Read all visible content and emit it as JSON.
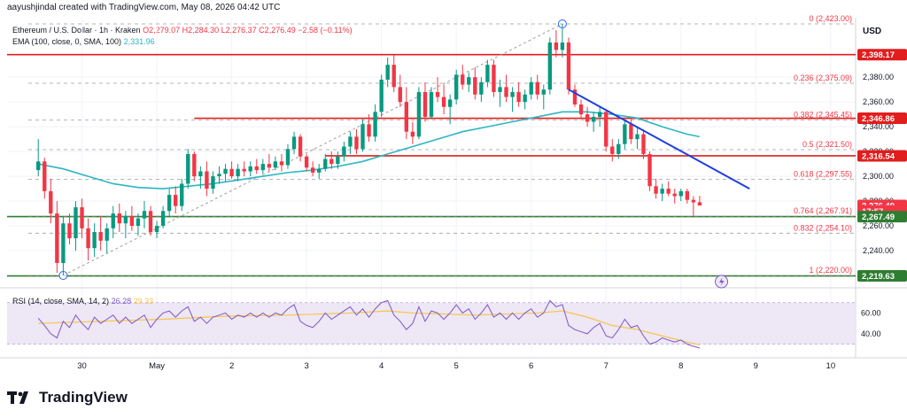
{
  "header": {
    "attribution": "aayushjindal created with TradingView.com, May 08, 2026 04:42 UTC",
    "symbol_line": "Ethereum / U.S. Dollar · 1h · Kraken",
    "ohlc": "O2,279.07 H2,284.30 L2,276.37 C2,276.49 −2.58 (−0.11%)",
    "ema_label": "EMA (100, close, 0, SMA, 100)",
    "ema_value": "2,331.96"
  },
  "currency": "USD",
  "brand": {
    "name": "TradingView"
  },
  "rsi_legend": {
    "label": "RSI (14, close, SMA, 14, 2)",
    "rsi_value": "26.28",
    "sma_value": "29.33"
  },
  "colors": {
    "up": "#089981",
    "down": "#f23645",
    "ema": "#2bb6c4",
    "resistance": "#e11d1d",
    "support": "#2e7d32",
    "trend": "#1e3ee0",
    "fib": "#9e9e9e",
    "rsi": "#7e57c2",
    "rsi_ma": "#f7c54a",
    "rsi_band": "#ede7f6"
  },
  "chart_data": {
    "type": "candlestick",
    "ylim": [
      2215,
      2428
    ],
    "xlim": [
      -5,
      131
    ],
    "x_ticks": [
      {
        "label": "30",
        "x": 7
      },
      {
        "label": "May",
        "x": 19
      },
      {
        "label": "2",
        "x": 31
      },
      {
        "label": "3",
        "x": 43
      },
      {
        "label": "4",
        "x": 55
      },
      {
        "label": "5",
        "x": 67
      },
      {
        "label": "6",
        "x": 79
      },
      {
        "label": "7",
        "x": 91
      },
      {
        "label": "8",
        "x": 103
      },
      {
        "label": "9",
        "x": 115
      },
      {
        "label": "10",
        "x": 127
      }
    ],
    "y_ticks": [
      2240,
      2260,
      2280,
      2300,
      2320,
      2340,
      2360,
      2380
    ],
    "y_tick_labels": [
      "2,240.00",
      "2,260.00",
      "2,280.00",
      "2,300.00",
      "2,320.00",
      "2,340.00",
      "2,360.00",
      "2,380.00"
    ],
    "price_tags": [
      {
        "label": "2,398.17",
        "value": 2398.17,
        "color": "#e11d1d"
      },
      {
        "label": "2,346.86",
        "value": 2346.86,
        "color": "#e11d1d"
      },
      {
        "label": "2,316.54",
        "value": 2316.54,
        "color": "#e11d1d"
      },
      {
        "label": "2,276.49",
        "value": 2276.49,
        "color": "#f23645"
      },
      {
        "label": "17:57",
        "value": 2272.0,
        "color": "#f23645"
      },
      {
        "label": "2,267.49",
        "value": 2267.49,
        "color": "#2e7d32"
      },
      {
        "label": "2,219.63",
        "value": 2219.63,
        "color": "#2e7d32"
      }
    ],
    "fib_levels": [
      {
        "ratio": "0",
        "price": "2,423.00",
        "value": 2423.0
      },
      {
        "ratio": "0.236",
        "price": "2,375.09",
        "value": 2375.09
      },
      {
        "ratio": "0.382",
        "price": "2,345.45",
        "value": 2345.45
      },
      {
        "ratio": "0.5",
        "price": "2,321.50",
        "value": 2321.5
      },
      {
        "ratio": "0.618",
        "price": "2,297.55",
        "value": 2297.55
      },
      {
        "ratio": "0.764",
        "price": "2,267.91",
        "value": 2267.91
      },
      {
        "ratio": "0.832",
        "price": "2,254.10",
        "value": 2254.1
      },
      {
        "ratio": "1",
        "price": "2,220.00",
        "value": 2220.0
      }
    ],
    "horizontal_lines": [
      {
        "value": 2398.17,
        "x_from": -5,
        "x_to": 131,
        "color": "#e11d1d"
      },
      {
        "value": 2346.86,
        "x_from": 25,
        "x_to": 131,
        "color": "#e11d1d"
      },
      {
        "value": 2316.54,
        "x_from": 46,
        "x_to": 131,
        "color": "#e11d1d"
      },
      {
        "value": 2267.49,
        "x_from": -5,
        "x_to": 131,
        "color": "#2e7d32"
      },
      {
        "value": 2219.63,
        "x_from": -5,
        "x_to": 131,
        "color": "#2e7d32"
      }
    ],
    "trend_line": {
      "x0": 85,
      "y0": 2370,
      "x1": 114,
      "y1": 2290
    },
    "fib_anchor_line": {
      "x0": 4,
      "y0": 2220,
      "x1": 84,
      "y1": 2423
    },
    "candles": [
      {
        "x": 0,
        "o": 2305,
        "h": 2330,
        "l": 2300,
        "c": 2312
      },
      {
        "x": 1,
        "o": 2312,
        "h": 2315,
        "l": 2282,
        "c": 2288
      },
      {
        "x": 2,
        "o": 2288,
        "h": 2298,
        "l": 2262,
        "c": 2270
      },
      {
        "x": 3,
        "o": 2270,
        "h": 2280,
        "l": 2222,
        "c": 2230
      },
      {
        "x": 4,
        "o": 2230,
        "h": 2268,
        "l": 2220,
        "c": 2262
      },
      {
        "x": 5,
        "o": 2262,
        "h": 2270,
        "l": 2245,
        "c": 2250
      },
      {
        "x": 6,
        "o": 2250,
        "h": 2280,
        "l": 2240,
        "c": 2275
      },
      {
        "x": 7,
        "o": 2275,
        "h": 2282,
        "l": 2250,
        "c": 2258
      },
      {
        "x": 8,
        "o": 2258,
        "h": 2266,
        "l": 2232,
        "c": 2242
      },
      {
        "x": 9,
        "o": 2242,
        "h": 2262,
        "l": 2235,
        "c": 2255
      },
      {
        "x": 10,
        "o": 2255,
        "h": 2268,
        "l": 2240,
        "c": 2248
      },
      {
        "x": 11,
        "o": 2248,
        "h": 2262,
        "l": 2238,
        "c": 2258
      },
      {
        "x": 12,
        "o": 2258,
        "h": 2276,
        "l": 2250,
        "c": 2270
      },
      {
        "x": 13,
        "o": 2270,
        "h": 2278,
        "l": 2255,
        "c": 2262
      },
      {
        "x": 14,
        "o": 2262,
        "h": 2272,
        "l": 2250,
        "c": 2268
      },
      {
        "x": 15,
        "o": 2268,
        "h": 2276,
        "l": 2256,
        "c": 2260
      },
      {
        "x": 16,
        "o": 2260,
        "h": 2270,
        "l": 2252,
        "c": 2266
      },
      {
        "x": 17,
        "o": 2266,
        "h": 2280,
        "l": 2258,
        "c": 2272
      },
      {
        "x": 18,
        "o": 2272,
        "h": 2276,
        "l": 2252,
        "c": 2255
      },
      {
        "x": 19,
        "o": 2255,
        "h": 2264,
        "l": 2250,
        "c": 2260
      },
      {
        "x": 20,
        "o": 2260,
        "h": 2276,
        "l": 2258,
        "c": 2272
      },
      {
        "x": 21,
        "o": 2272,
        "h": 2290,
        "l": 2268,
        "c": 2285
      },
      {
        "x": 22,
        "o": 2285,
        "h": 2292,
        "l": 2270,
        "c": 2276
      },
      {
        "x": 23,
        "o": 2276,
        "h": 2298,
        "l": 2272,
        "c": 2294
      },
      {
        "x": 24,
        "o": 2294,
        "h": 2322,
        "l": 2290,
        "c": 2318
      },
      {
        "x": 25,
        "o": 2318,
        "h": 2320,
        "l": 2296,
        "c": 2300
      },
      {
        "x": 26,
        "o": 2300,
        "h": 2308,
        "l": 2290,
        "c": 2304
      },
      {
        "x": 27,
        "o": 2304,
        "h": 2312,
        "l": 2284,
        "c": 2290
      },
      {
        "x": 28,
        "o": 2290,
        "h": 2304,
        "l": 2286,
        "c": 2300
      },
      {
        "x": 29,
        "o": 2300,
        "h": 2308,
        "l": 2294,
        "c": 2302
      },
      {
        "x": 30,
        "o": 2302,
        "h": 2310,
        "l": 2296,
        "c": 2306
      },
      {
        "x": 31,
        "o": 2306,
        "h": 2312,
        "l": 2298,
        "c": 2300
      },
      {
        "x": 32,
        "o": 2300,
        "h": 2310,
        "l": 2296,
        "c": 2306
      },
      {
        "x": 33,
        "o": 2306,
        "h": 2312,
        "l": 2300,
        "c": 2304
      },
      {
        "x": 34,
        "o": 2304,
        "h": 2312,
        "l": 2300,
        "c": 2308
      },
      {
        "x": 35,
        "o": 2308,
        "h": 2314,
        "l": 2302,
        "c": 2305
      },
      {
        "x": 36,
        "o": 2305,
        "h": 2314,
        "l": 2302,
        "c": 2310
      },
      {
        "x": 37,
        "o": 2310,
        "h": 2318,
        "l": 2304,
        "c": 2307
      },
      {
        "x": 38,
        "o": 2307,
        "h": 2316,
        "l": 2305,
        "c": 2312
      },
      {
        "x": 39,
        "o": 2312,
        "h": 2318,
        "l": 2304,
        "c": 2309
      },
      {
        "x": 40,
        "o": 2309,
        "h": 2326,
        "l": 2306,
        "c": 2322
      },
      {
        "x": 41,
        "o": 2322,
        "h": 2336,
        "l": 2318,
        "c": 2332
      },
      {
        "x": 42,
        "o": 2332,
        "h": 2334,
        "l": 2312,
        "c": 2316
      },
      {
        "x": 43,
        "o": 2316,
        "h": 2318,
        "l": 2304,
        "c": 2307
      },
      {
        "x": 44,
        "o": 2307,
        "h": 2312,
        "l": 2300,
        "c": 2303
      },
      {
        "x": 45,
        "o": 2303,
        "h": 2310,
        "l": 2298,
        "c": 2306
      },
      {
        "x": 46,
        "o": 2306,
        "h": 2318,
        "l": 2304,
        "c": 2314
      },
      {
        "x": 47,
        "o": 2314,
        "h": 2320,
        "l": 2306,
        "c": 2310
      },
      {
        "x": 48,
        "o": 2310,
        "h": 2320,
        "l": 2306,
        "c": 2316
      },
      {
        "x": 49,
        "o": 2316,
        "h": 2328,
        "l": 2312,
        "c": 2324
      },
      {
        "x": 50,
        "o": 2324,
        "h": 2336,
        "l": 2318,
        "c": 2332
      },
      {
        "x": 51,
        "o": 2332,
        "h": 2338,
        "l": 2318,
        "c": 2322
      },
      {
        "x": 52,
        "o": 2322,
        "h": 2346,
        "l": 2320,
        "c": 2342
      },
      {
        "x": 53,
        "o": 2342,
        "h": 2350,
        "l": 2328,
        "c": 2332
      },
      {
        "x": 54,
        "o": 2332,
        "h": 2358,
        "l": 2328,
        "c": 2352
      },
      {
        "x": 55,
        "o": 2352,
        "h": 2382,
        "l": 2348,
        "c": 2378
      },
      {
        "x": 56,
        "o": 2378,
        "h": 2396,
        "l": 2372,
        "c": 2390
      },
      {
        "x": 57,
        "o": 2390,
        "h": 2398,
        "l": 2368,
        "c": 2372
      },
      {
        "x": 58,
        "o": 2372,
        "h": 2382,
        "l": 2356,
        "c": 2360
      },
      {
        "x": 59,
        "o": 2360,
        "h": 2372,
        "l": 2330,
        "c": 2336
      },
      {
        "x": 60,
        "o": 2336,
        "h": 2344,
        "l": 2326,
        "c": 2332
      },
      {
        "x": 61,
        "o": 2332,
        "h": 2372,
        "l": 2330,
        "c": 2368
      },
      {
        "x": 62,
        "o": 2368,
        "h": 2376,
        "l": 2344,
        "c": 2348
      },
      {
        "x": 63,
        "o": 2348,
        "h": 2372,
        "l": 2346,
        "c": 2368
      },
      {
        "x": 64,
        "o": 2368,
        "h": 2380,
        "l": 2360,
        "c": 2364
      },
      {
        "x": 65,
        "o": 2364,
        "h": 2374,
        "l": 2350,
        "c": 2356
      },
      {
        "x": 66,
        "o": 2356,
        "h": 2366,
        "l": 2342,
        "c": 2362
      },
      {
        "x": 67,
        "o": 2362,
        "h": 2386,
        "l": 2358,
        "c": 2382
      },
      {
        "x": 68,
        "o": 2382,
        "h": 2390,
        "l": 2370,
        "c": 2374
      },
      {
        "x": 69,
        "o": 2374,
        "h": 2384,
        "l": 2368,
        "c": 2380
      },
      {
        "x": 70,
        "o": 2380,
        "h": 2388,
        "l": 2362,
        "c": 2366
      },
      {
        "x": 71,
        "o": 2366,
        "h": 2380,
        "l": 2360,
        "c": 2376
      },
      {
        "x": 72,
        "o": 2376,
        "h": 2394,
        "l": 2372,
        "c": 2390
      },
      {
        "x": 73,
        "o": 2390,
        "h": 2394,
        "l": 2364,
        "c": 2368
      },
      {
        "x": 74,
        "o": 2368,
        "h": 2378,
        "l": 2356,
        "c": 2372
      },
      {
        "x": 75,
        "o": 2372,
        "h": 2382,
        "l": 2360,
        "c": 2364
      },
      {
        "x": 76,
        "o": 2364,
        "h": 2372,
        "l": 2352,
        "c": 2368
      },
      {
        "x": 77,
        "o": 2368,
        "h": 2376,
        "l": 2356,
        "c": 2360
      },
      {
        "x": 78,
        "o": 2360,
        "h": 2370,
        "l": 2354,
        "c": 2366
      },
      {
        "x": 79,
        "o": 2366,
        "h": 2380,
        "l": 2362,
        "c": 2376
      },
      {
        "x": 80,
        "o": 2376,
        "h": 2382,
        "l": 2362,
        "c": 2366
      },
      {
        "x": 81,
        "o": 2366,
        "h": 2374,
        "l": 2354,
        "c": 2370
      },
      {
        "x": 82,
        "o": 2370,
        "h": 2412,
        "l": 2366,
        "c": 2408
      },
      {
        "x": 83,
        "o": 2408,
        "h": 2418,
        "l": 2396,
        "c": 2402
      },
      {
        "x": 84,
        "o": 2402,
        "h": 2423,
        "l": 2396,
        "c": 2408
      },
      {
        "x": 85,
        "o": 2408,
        "h": 2412,
        "l": 2366,
        "c": 2370
      },
      {
        "x": 86,
        "o": 2370,
        "h": 2374,
        "l": 2356,
        "c": 2358
      },
      {
        "x": 87,
        "o": 2358,
        "h": 2362,
        "l": 2346,
        "c": 2350
      },
      {
        "x": 88,
        "o": 2350,
        "h": 2356,
        "l": 2340,
        "c": 2344
      },
      {
        "x": 89,
        "o": 2344,
        "h": 2352,
        "l": 2336,
        "c": 2348
      },
      {
        "x": 90,
        "o": 2348,
        "h": 2356,
        "l": 2340,
        "c": 2352
      },
      {
        "x": 91,
        "o": 2352,
        "h": 2354,
        "l": 2320,
        "c": 2324
      },
      {
        "x": 92,
        "o": 2324,
        "h": 2330,
        "l": 2312,
        "c": 2318
      },
      {
        "x": 93,
        "o": 2318,
        "h": 2330,
        "l": 2314,
        "c": 2326
      },
      {
        "x": 94,
        "o": 2326,
        "h": 2346,
        "l": 2322,
        "c": 2342
      },
      {
        "x": 95,
        "o": 2342,
        "h": 2346,
        "l": 2326,
        "c": 2330
      },
      {
        "x": 96,
        "o": 2330,
        "h": 2340,
        "l": 2322,
        "c": 2334
      },
      {
        "x": 97,
        "o": 2334,
        "h": 2338,
        "l": 2314,
        "c": 2318
      },
      {
        "x": 98,
        "o": 2318,
        "h": 2320,
        "l": 2288,
        "c": 2292
      },
      {
        "x": 99,
        "o": 2292,
        "h": 2298,
        "l": 2282,
        "c": 2286
      },
      {
        "x": 100,
        "o": 2286,
        "h": 2294,
        "l": 2280,
        "c": 2290
      },
      {
        "x": 101,
        "o": 2290,
        "h": 2296,
        "l": 2284,
        "c": 2286
      },
      {
        "x": 102,
        "o": 2286,
        "h": 2290,
        "l": 2278,
        "c": 2284
      },
      {
        "x": 103,
        "o": 2284,
        "h": 2290,
        "l": 2280,
        "c": 2288
      },
      {
        "x": 104,
        "o": 2288,
        "h": 2290,
        "l": 2278,
        "c": 2281
      },
      {
        "x": 105,
        "o": 2281,
        "h": 2284,
        "l": 2268,
        "c": 2279
      },
      {
        "x": 106,
        "o": 2279.07,
        "h": 2284.3,
        "l": 2276.37,
        "c": 2276.49
      }
    ],
    "ema": [
      [
        0,
        2310
      ],
      [
        4,
        2306
      ],
      [
        8,
        2300
      ],
      [
        12,
        2294
      ],
      [
        16,
        2291
      ],
      [
        20,
        2290
      ],
      [
        24,
        2292
      ],
      [
        28,
        2294
      ],
      [
        32,
        2297
      ],
      [
        36,
        2300
      ],
      [
        40,
        2303
      ],
      [
        44,
        2305
      ],
      [
        48,
        2308
      ],
      [
        52,
        2312
      ],
      [
        56,
        2318
      ],
      [
        60,
        2324
      ],
      [
        64,
        2330
      ],
      [
        68,
        2336
      ],
      [
        72,
        2340
      ],
      [
        76,
        2344
      ],
      [
        80,
        2348
      ],
      [
        84,
        2352
      ],
      [
        88,
        2352
      ],
      [
        92,
        2350
      ],
      [
        96,
        2347
      ],
      [
        100,
        2340
      ],
      [
        104,
        2334
      ],
      [
        106,
        2331.96
      ]
    ],
    "rsi": {
      "ylim": [
        22,
        80
      ],
      "band": [
        30,
        70
      ],
      "y_ticks": [
        40,
        60
      ],
      "y_tick_labels": [
        "40.00",
        "60.00"
      ],
      "rsi_values": [
        55,
        48,
        40,
        36,
        52,
        46,
        58,
        50,
        44,
        56,
        50,
        54,
        58,
        50,
        56,
        50,
        54,
        58,
        46,
        54,
        60,
        62,
        56,
        62,
        66,
        52,
        56,
        50,
        56,
        58,
        60,
        54,
        58,
        56,
        60,
        56,
        60,
        56,
        60,
        58,
        64,
        68,
        52,
        48,
        46,
        52,
        60,
        54,
        58,
        62,
        66,
        58,
        64,
        56,
        64,
        70,
        72,
        58,
        52,
        44,
        50,
        66,
        52,
        62,
        60,
        54,
        60,
        68,
        60,
        64,
        54,
        60,
        68,
        56,
        60,
        54,
        60,
        54,
        60,
        64,
        56,
        60,
        72,
        66,
        68,
        48,
        44,
        42,
        40,
        46,
        50,
        38,
        36,
        44,
        54,
        46,
        48,
        38,
        30,
        32,
        36,
        34,
        32,
        34,
        30,
        28,
        26.28
      ],
      "sma_values": [
        [
          0,
          50
        ],
        [
          10,
          52
        ],
        [
          20,
          54
        ],
        [
          30,
          57
        ],
        [
          40,
          58
        ],
        [
          50,
          60
        ],
        [
          56,
          62
        ],
        [
          60,
          60
        ],
        [
          70,
          58
        ],
        [
          80,
          60
        ],
        [
          84,
          62
        ],
        [
          88,
          56
        ],
        [
          92,
          48
        ],
        [
          96,
          44
        ],
        [
          100,
          38
        ],
        [
          104,
          32
        ],
        [
          106,
          29.33
        ]
      ]
    }
  }
}
